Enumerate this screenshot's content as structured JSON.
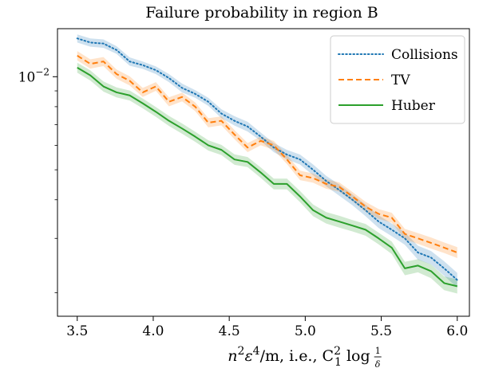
{
  "chart_data": {
    "type": "line",
    "title": "Failure probability in region B",
    "xlabel": {
      "prefix": "n",
      "prefix_exp": "2",
      "eps": "ε",
      "eps_exp": "4",
      "middle": "/m, i.e., C",
      "c_sub": "1",
      "c_exp": "2",
      "log": " log ",
      "frac_num": "1",
      "frac_den": "δ"
    },
    "ylabel": "",
    "xlim": [
      3.37,
      6.08
    ],
    "ylim": [
      0.00168,
      0.0143
    ],
    "yscale": "log",
    "x_ticks": [
      3.5,
      4.0,
      4.5,
      5.0,
      5.5,
      6.0
    ],
    "x_tick_labels": [
      "3.5",
      "4.0",
      "4.5",
      "5.0",
      "5.5",
      "6.0"
    ],
    "y_major_ticks": [
      0.01
    ],
    "y_tick_labels": [
      {
        "base": "10",
        "exp": "−2"
      }
    ],
    "y_minor_ticks": [
      0.002,
      0.003,
      0.004,
      0.005,
      0.006,
      0.007,
      0.008,
      0.009
    ],
    "legend_position": "top-right",
    "x": [
      3.5,
      3.5862,
      3.6724,
      3.7586,
      3.8448,
      3.931,
      4.0172,
      4.1034,
      4.1897,
      4.2759,
      4.3621,
      4.4483,
      4.5345,
      4.6207,
      4.7069,
      4.7931,
      4.8793,
      4.9655,
      5.0517,
      5.1379,
      5.2241,
      5.3103,
      5.3966,
      5.4828,
      5.569,
      5.6552,
      5.7414,
      5.8276,
      5.9138,
      6.0
    ],
    "series": [
      {
        "name": "Collisions",
        "color": "#1f77b4",
        "style": "dotted",
        "values": [
          0.0133,
          0.0129,
          0.0128,
          0.0122,
          0.0112,
          0.0109,
          0.0105,
          0.0099,
          0.0092,
          0.0088,
          0.0083,
          0.0076,
          0.0072,
          0.0069,
          0.0064,
          0.0059,
          0.0056,
          0.0054,
          0.005,
          0.0046,
          0.0043,
          0.004,
          0.0037,
          0.0034,
          0.0032,
          0.003,
          0.0027,
          0.0026,
          0.0024,
          0.0022
        ],
        "band": [
          0.0004,
          0.0004,
          0.0004,
          0.00035,
          0.00035,
          0.0003,
          0.0003,
          0.0003,
          0.0003,
          0.00025,
          0.00025,
          0.00025,
          0.00025,
          0.00025,
          0.0002,
          0.0002,
          0.0002,
          0.0002,
          0.0002,
          0.00018,
          0.00018,
          0.00016,
          0.00016,
          0.00016,
          0.00015,
          0.00014,
          0.00014,
          0.00013,
          0.00013,
          0.00012
        ]
      },
      {
        "name": "TV",
        "color": "#ff7f0e",
        "style": "dashed",
        "values": [
          0.0117,
          0.011,
          0.0112,
          0.0102,
          0.0097,
          0.0089,
          0.0093,
          0.0083,
          0.0086,
          0.008,
          0.0071,
          0.0072,
          0.0065,
          0.0059,
          0.0062,
          0.006,
          0.0054,
          0.0048,
          0.0047,
          0.0045,
          0.0044,
          0.0041,
          0.0038,
          0.0036,
          0.0035,
          0.0031,
          0.003,
          0.0029,
          0.0028,
          0.0027
        ],
        "band": [
          0.0004,
          0.00038,
          0.00038,
          0.00035,
          0.00033,
          0.0003,
          0.0003,
          0.00028,
          0.00028,
          0.00026,
          0.00024,
          0.00024,
          0.00022,
          0.0002,
          0.0002,
          0.0002,
          0.00018,
          0.00017,
          0.00016,
          0.00016,
          0.00015,
          0.00014,
          0.00014,
          0.00013,
          0.00013,
          0.00012,
          0.00012,
          0.00012,
          0.00011,
          0.00011
        ]
      },
      {
        "name": "Huber",
        "color": "#2ca02c",
        "style": "solid",
        "values": [
          0.0107,
          0.0101,
          0.0093,
          0.0089,
          0.0087,
          0.0082,
          0.0077,
          0.0072,
          0.0068,
          0.0064,
          0.006,
          0.0058,
          0.0054,
          0.0053,
          0.0049,
          0.0045,
          0.0045,
          0.0041,
          0.0037,
          0.0035,
          0.0034,
          0.0033,
          0.0032,
          0.003,
          0.0028,
          0.0024,
          0.00245,
          0.00235,
          0.00215,
          0.0021
        ],
        "band": [
          0.0004,
          0.00038,
          0.00035,
          0.00033,
          0.00032,
          0.0003,
          0.00028,
          0.00027,
          0.00026,
          0.00024,
          0.00023,
          0.00022,
          0.00021,
          0.0002,
          0.00019,
          0.00018,
          0.00018,
          0.00017,
          0.00016,
          0.00015,
          0.00015,
          0.00014,
          0.00014,
          0.00013,
          0.00013,
          0.00012,
          0.00012,
          0.00012,
          0.00011,
          0.00011
        ]
      }
    ]
  }
}
